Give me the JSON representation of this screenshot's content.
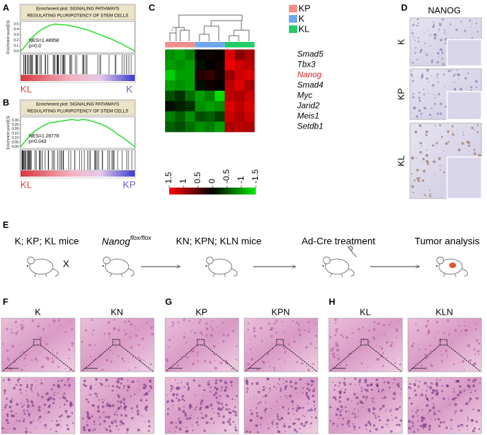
{
  "panel_labels": [
    "A",
    "B",
    "C",
    "D",
    "E",
    "F",
    "G",
    "H"
  ],
  "chart_data": [
    {
      "type": "gsea",
      "title": [
        "Enrichment plot: SIGNALING PATHWAYS",
        "REGULATING PLURIPOTENCY OF STEM CELLS"
      ],
      "y_label": "Enrichment score(ES)",
      "annotations": [
        "NES=1.48958",
        "p=0.0"
      ],
      "phenotypes": [
        {
          "name": "KL",
          "color": "#e8413a"
        },
        {
          "name": "K",
          "color": "#6a5acd"
        }
      ],
      "values": [
        0,
        0.12,
        0.25,
        0.35,
        0.42,
        0.47,
        0.5,
        0.49,
        0.48,
        0.46,
        0.44,
        0.41,
        0.38,
        0.34,
        0.3,
        0.26,
        0.22,
        0.17,
        0.12,
        0.06,
        0
      ],
      "color": "#22dd22",
      "ylim": [
        -0.03,
        0.55
      ],
      "yticks": [
        {
          "value": 0,
          "label": "0.0"
        },
        0.1,
        0.2,
        0.3,
        0.4,
        0.5
      ]
    },
    {
      "type": "gsea",
      "title": [
        "Enrichment plot: SIGNALING PATHWAYS",
        "REGULATING PLURIPOTENCY OF STEM CELLS"
      ],
      "y_label": "Enrichment score(ES)",
      "annotations": [
        "NES=1.28778",
        "p=0.043"
      ],
      "phenotypes": [
        {
          "name": "KL",
          "color": "#e8413a"
        },
        {
          "name": "KP",
          "color": "#6a5acd"
        }
      ],
      "values": [
        0,
        0.08,
        0.15,
        0.2,
        0.24,
        0.27,
        0.28,
        0.29,
        0.3,
        0.31,
        0.3,
        0.31,
        0.3,
        0.28,
        0.26,
        0.23,
        0.19,
        0.14,
        0.1,
        0.05,
        0
      ],
      "color": "#22dd22",
      "ylim": [
        -0.02,
        0.34
      ],
      "yticks": [
        {
          "value": 0,
          "label": "0.00"
        },
        0.05,
        {
          "value": 0.1,
          "label": "0.10"
        },
        0.15,
        {
          "value": 0.2,
          "label": "0.20"
        },
        0.25,
        {
          "value": 0.3,
          "label": "0.30"
        }
      ]
    },
    {
      "type": "heatmap",
      "groups": [
        {
          "name": "KP",
          "color": "#f4908c",
          "columns": 3
        },
        {
          "name": "K",
          "color": "#6fa8f0",
          "columns": 3
        },
        {
          "name": "KL",
          "color": "#22cc66",
          "columns": 3
        }
      ],
      "rows": [
        "Smad5",
        "Tbx3",
        "Nanog",
        "Smad4",
        "Myc",
        "Jarid2",
        "Meis1",
        "Setdb1"
      ],
      "row_label_colors": [
        "#000000",
        "#000000",
        "#e02020",
        "#000000",
        "#000000",
        "#000000",
        "#000000",
        "#000000"
      ],
      "values": [
        [
          -0.9,
          -1,
          -0.8,
          0,
          0.1,
          0,
          1.3,
          0.8,
          1.0
        ],
        [
          -1,
          -0.9,
          -1,
          -0.1,
          0,
          0.1,
          1.4,
          1.2,
          1.1
        ],
        [
          -1.3,
          -1,
          -1,
          0.2,
          0.3,
          0.1,
          0.9,
          1.2,
          1.3
        ],
        [
          -1,
          -0.9,
          -1,
          -0.1,
          0.1,
          0,
          1.1,
          1.3,
          1.0
        ],
        [
          -0.5,
          -0.3,
          -0.7,
          -1,
          -0.8,
          -1.4,
          1.1,
          1.0,
          1.2
        ],
        [
          -0.1,
          -0.2,
          -0.3,
          -0.9,
          -1,
          -0.9,
          1.3,
          1.1,
          1.3
        ],
        [
          -0.8,
          -0.6,
          -0.9,
          -0.5,
          -0.6,
          -0.4,
          1.2,
          1.0,
          1.2
        ],
        [
          -0.6,
          -0.5,
          -0.7,
          -0.9,
          -0.8,
          -1,
          1.0,
          1.1,
          1.0
        ]
      ],
      "zlim": [
        -1.5,
        1.5
      ],
      "high_color": "#ff0000",
      "low_color": "#00ee00",
      "colorbar_ticks": [
        1.5,
        1,
        0.5,
        0,
        -0.5,
        -1,
        -1.5
      ]
    }
  ],
  "panel_d": {
    "title": "NANOG",
    "rows": [
      "K",
      "KP",
      "KL"
    ]
  },
  "panel_e": {
    "start": "K; KP; KL mice",
    "cross": "X",
    "gene": "Nanog",
    "allele": "flox/flox",
    "steps": [
      "KN; KPN; KLN mice",
      "Ad-Cre treatment",
      "Tumor analysis"
    ]
  },
  "histology": [
    {
      "columns": [
        "K",
        "KN"
      ]
    },
    {
      "columns": [
        "KP",
        "KPN"
      ]
    },
    {
      "columns": [
        "KL",
        "KLN"
      ]
    }
  ]
}
